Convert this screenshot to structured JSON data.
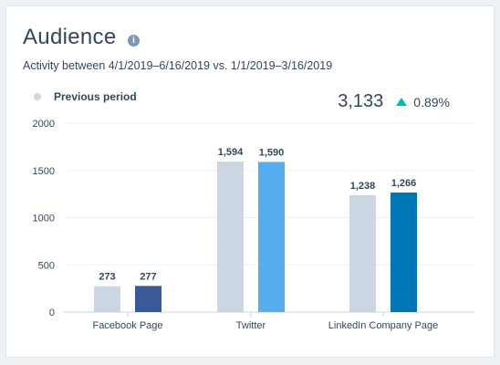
{
  "header": {
    "title": "Audience",
    "info_glyph": "i",
    "subtitle": "Activity between 4/1/2019–6/16/2019 vs. 1/1/2019–3/16/2019",
    "legend_label": "Previous period",
    "total_value": "3,133",
    "total_change": "0.89%"
  },
  "colors": {
    "previous": "#cbd6e2",
    "facebook": "#3b5998",
    "twitter": "#55acee",
    "linkedin": "#0077b5",
    "trend_up": "#00bda5"
  },
  "chart_data": {
    "type": "bar",
    "categories": [
      "Facebook Page",
      "Twitter",
      "LinkedIn Company Page"
    ],
    "series": [
      {
        "name": "Previous period",
        "values": [
          273,
          1594,
          1238
        ]
      },
      {
        "values": [
          277,
          1590,
          1266
        ]
      }
    ],
    "value_labels": [
      [
        "273",
        "1,594",
        "1,238"
      ],
      [
        "277",
        "1,590",
        "1,266"
      ]
    ],
    "y_ticks": [
      0,
      500,
      1000,
      1500,
      2000
    ],
    "ylim": [
      0,
      2000
    ],
    "grid": "horizontal",
    "legend": "top-left"
  }
}
